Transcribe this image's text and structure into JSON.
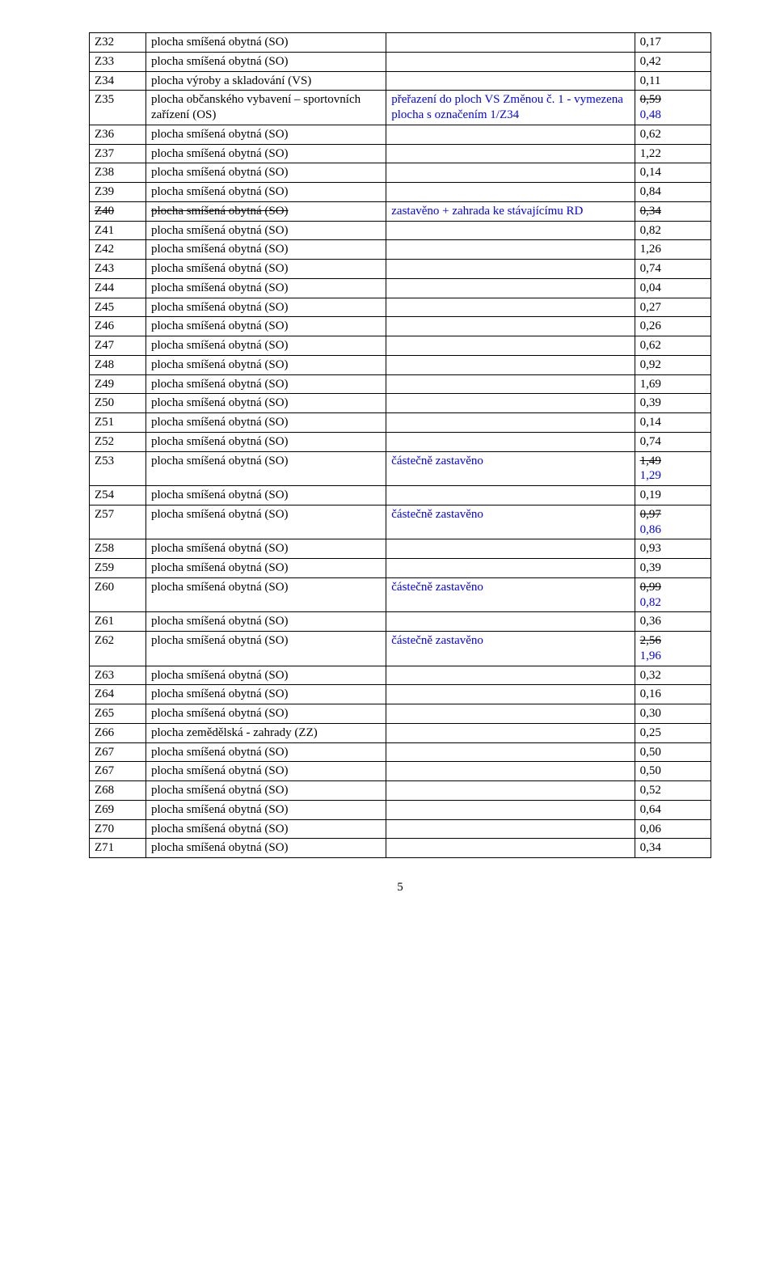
{
  "page_number": "5",
  "colors": {
    "text_blue": "#0000ff",
    "border": "#000000",
    "bg": "#ffffff"
  },
  "rows": [
    {
      "code": "Z32",
      "desc": "plocha smíšená obytná (SO)",
      "note": "",
      "val": "0,17"
    },
    {
      "code": "Z33",
      "desc": "plocha smíšená obytná (SO)",
      "note": "",
      "val": "0,42"
    },
    {
      "code": "Z34",
      "desc": "plocha výroby a skladování (VS)",
      "note": "",
      "val": "0,11"
    },
    {
      "code": "Z35",
      "desc": "plocha občanského vybavení – sportovních zařízení (OS)",
      "note": "přeřazení do ploch VS Změnou č. 1 - vymezena plocha s označením 1/Z34",
      "note_blue": true,
      "val_lines": [
        {
          "t": "0,59",
          "strike": true
        },
        {
          "t": "0,48",
          "blue": true
        }
      ]
    },
    {
      "code": "Z36",
      "desc": "plocha smíšená obytná (SO)",
      "note": "",
      "val": "0,62"
    },
    {
      "code": "Z37",
      "desc": "plocha smíšená obytná (SO)",
      "note": "",
      "val": "1,22"
    },
    {
      "code": "Z38",
      "desc": "plocha smíšená obytná (SO)",
      "note": "",
      "val": "0,14"
    },
    {
      "code": "Z39",
      "desc": "plocha smíšená obytná (SO)",
      "note": "",
      "val": "0,84"
    },
    {
      "code": "Z40",
      "code_strike": true,
      "desc": "plocha smíšená obytná (SO)",
      "desc_strike": true,
      "note": "zastavěno + zahrada ke stávajícímu RD",
      "note_blue": true,
      "val": "0,34",
      "val_strike": true
    },
    {
      "code": "Z41",
      "desc": "plocha smíšená obytná (SO)",
      "note": "",
      "val": "0,82"
    },
    {
      "code": "Z42",
      "desc": "plocha smíšená obytná (SO)",
      "note": "",
      "val": "1,26"
    },
    {
      "code": "Z43",
      "desc": "plocha smíšená obytná (SO)",
      "note": "",
      "val": "0,74"
    },
    {
      "code": "Z44",
      "desc": "plocha smíšená obytná (SO)",
      "note": "",
      "val": "0,04"
    },
    {
      "code": "Z45",
      "desc": "plocha smíšená obytná (SO)",
      "note": "",
      "val": "0,27"
    },
    {
      "code": "Z46",
      "desc": "plocha smíšená obytná (SO)",
      "note": "",
      "val": "0,26"
    },
    {
      "code": "Z47",
      "desc": "plocha smíšená obytná (SO)",
      "note": "",
      "val": "0,62"
    },
    {
      "code": "Z48",
      "desc": "plocha smíšená obytná (SO)",
      "note": "",
      "val": "0,92"
    },
    {
      "code": "Z49",
      "desc": "plocha smíšená obytná (SO)",
      "note": "",
      "val": "1,69"
    },
    {
      "code": "Z50",
      "desc": "plocha smíšená obytná (SO)",
      "note": "",
      "val": "0,39"
    },
    {
      "code": "Z51",
      "desc": "plocha smíšená obytná (SO)",
      "note": "",
      "val": "0,14"
    },
    {
      "code": "Z52",
      "desc": "plocha smíšená obytná (SO)",
      "note": "",
      "val": "0,74"
    },
    {
      "code": "Z53",
      "desc": "plocha smíšená obytná (SO)",
      "note": "částečně zastavěno",
      "note_blue": true,
      "val_lines": [
        {
          "t": "1,49",
          "strike": true
        },
        {
          "t": "1,29",
          "blue": true
        }
      ]
    },
    {
      "code": "Z54",
      "desc": "plocha smíšená obytná (SO)",
      "note": "",
      "val": "0,19"
    },
    {
      "code": "Z57",
      "desc": "plocha smíšená obytná (SO)",
      "note": "částečně zastavěno",
      "note_blue": true,
      "val_lines": [
        {
          "t": "0,97",
          "strike": true
        },
        {
          "t": "0,86",
          "blue": true
        }
      ]
    },
    {
      "code": "Z58",
      "desc": "plocha smíšená obytná (SO)",
      "note": "",
      "val": "0,93"
    },
    {
      "code": "Z59",
      "desc": "plocha smíšená obytná (SO)",
      "note": "",
      "val": "0,39"
    },
    {
      "code": "Z60",
      "desc": "plocha smíšená obytná (SO)",
      "note": "částečně zastavěno",
      "note_blue": true,
      "val_lines": [
        {
          "t": "0,99",
          "strike": true
        },
        {
          "t": "0,82",
          "blue": true
        }
      ]
    },
    {
      "code": "Z61",
      "desc": "plocha smíšená obytná (SO)",
      "note": "",
      "val": "0,36"
    },
    {
      "code": "Z62",
      "desc": "plocha smíšená obytná (SO)",
      "note": "částečně zastavěno",
      "note_blue": true,
      "val_lines": [
        {
          "t": "2,56",
          "strike": true
        },
        {
          "t": "1,96",
          "blue": true
        }
      ]
    },
    {
      "code": "Z63",
      "desc": "plocha smíšená obytná (SO)",
      "note": "",
      "val": "0,32"
    },
    {
      "code": "Z64",
      "desc": "plocha smíšená obytná (SO)",
      "note": "",
      "val": "0,16"
    },
    {
      "code": "Z65",
      "desc": "plocha smíšená obytná (SO)",
      "note": "",
      "val": "0,30"
    },
    {
      "code": "Z66",
      "desc": "plocha zemědělská - zahrady (ZZ)",
      "note": "",
      "val": "0,25"
    },
    {
      "code": "Z67",
      "desc": "plocha smíšená obytná (SO)",
      "note": "",
      "val": "0,50"
    },
    {
      "code": "Z67",
      "desc": "plocha smíšená obytná (SO)",
      "note": "",
      "val": "0,50"
    },
    {
      "code": "Z68",
      "desc": "plocha smíšená obytná (SO)",
      "note": "",
      "val": "0,52"
    },
    {
      "code": "Z69",
      "desc": "plocha smíšená obytná (SO)",
      "note": "",
      "val": "0,64"
    },
    {
      "code": "Z70",
      "desc": "plocha smíšená obytná (SO)",
      "note": "",
      "val": "0,06"
    },
    {
      "code": "Z71",
      "desc": "plocha smíšená obytná (SO)",
      "note": "",
      "val": "0,34"
    }
  ]
}
